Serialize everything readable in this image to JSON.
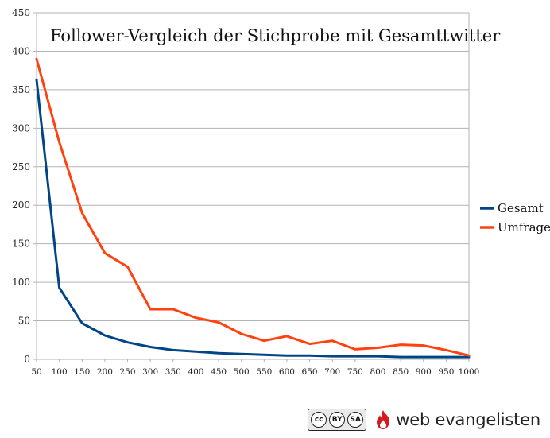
{
  "chart_data": {
    "type": "line",
    "title": "Follower-Vergleich der Stichprobe mit Gesamttwitter",
    "xlabel": "",
    "ylabel": "",
    "x": [
      50,
      100,
      150,
      200,
      250,
      300,
      350,
      400,
      450,
      500,
      550,
      600,
      650,
      700,
      750,
      800,
      850,
      900,
      950,
      1000
    ],
    "ylim": [
      0,
      450
    ],
    "yticks": [
      0,
      50,
      100,
      150,
      200,
      250,
      300,
      350,
      400,
      450
    ],
    "grid": "horizontal",
    "legend_position": "right",
    "series": [
      {
        "name": "Gesamt",
        "color": "#004586",
        "values": [
          363,
          93,
          47,
          31,
          22,
          16,
          12,
          10,
          8,
          7,
          6,
          5,
          5,
          4,
          4,
          4,
          3,
          3,
          3,
          3
        ]
      },
      {
        "name": "Umfrage",
        "color": "#ff420e",
        "values": [
          390,
          282,
          190,
          138,
          120,
          65,
          65,
          54,
          48,
          33,
          24,
          30,
          20,
          24,
          13,
          15,
          19,
          18,
          12,
          5
        ]
      }
    ]
  },
  "footer": {
    "license_badge": {
      "cc": "cc",
      "by": "BY",
      "sa": "SA"
    },
    "brand_icon": "flame-logo-icon",
    "brand_text": "web evangelisten",
    "brand_color": "#d71920"
  }
}
